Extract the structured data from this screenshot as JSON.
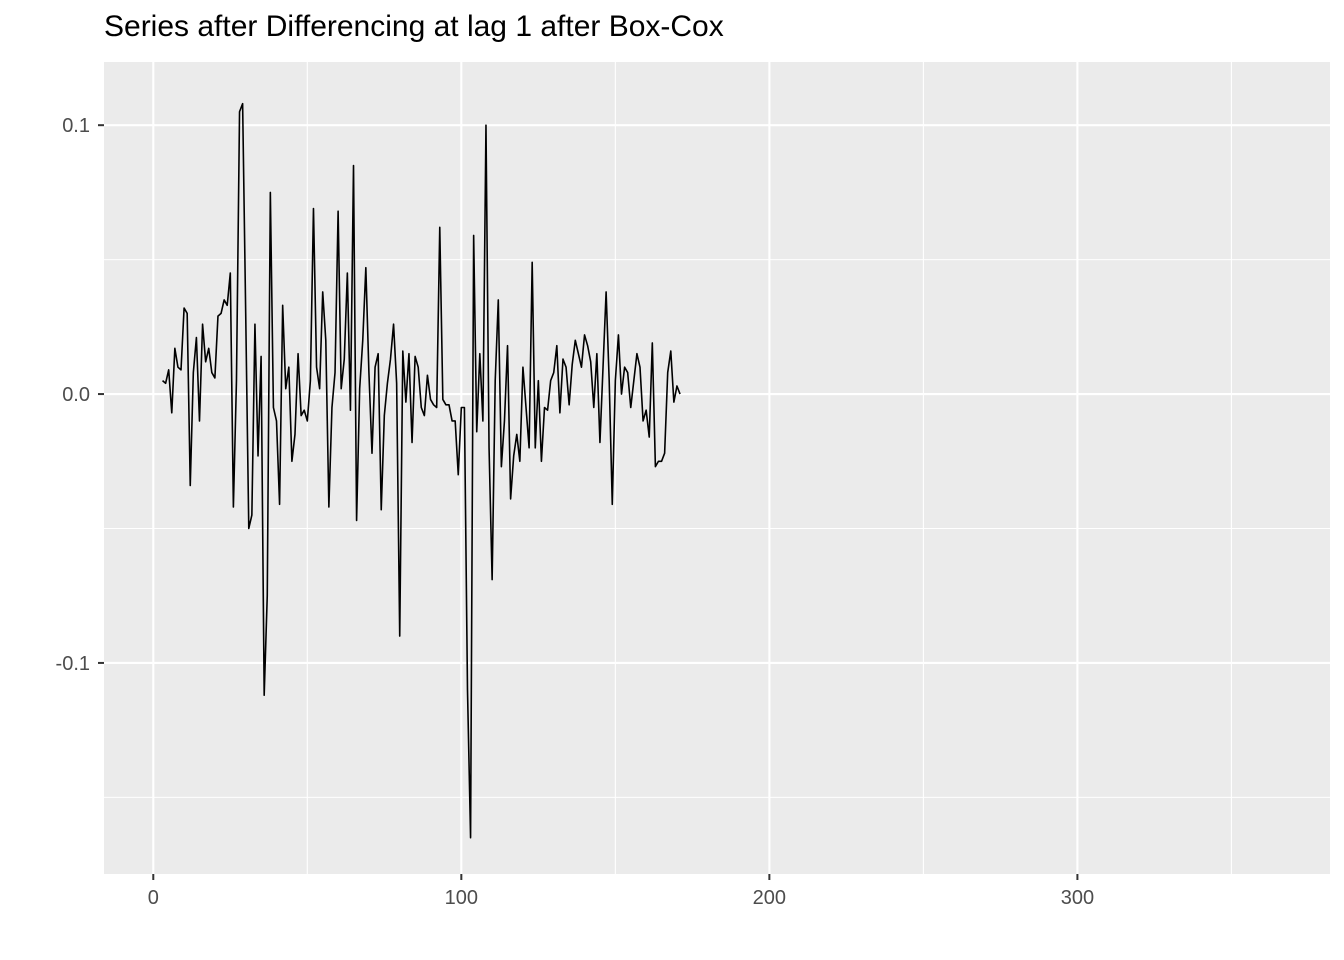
{
  "chart_data": {
    "type": "line",
    "title": "Series after Differencing at lag 1 after Box-Cox",
    "xlabel": "",
    "ylabel": "",
    "xlim": [
      -16,
      382
    ],
    "ylim": [
      -0.1785,
      0.1235
    ],
    "x_ticks": [
      0,
      100,
      200,
      300
    ],
    "x_tick_labels": [
      "0",
      "100",
      "200",
      "300"
    ],
    "y_ticks": [
      0.1,
      0.0,
      -0.1
    ],
    "y_tick_labels": [
      "0.1",
      "0.0",
      "-0.1"
    ],
    "grid": true,
    "panel_background": "#ebebeb",
    "grid_color": "#ffffff",
    "line_color": "#000000",
    "series": [
      {
        "x_start": 3,
        "values": [
          0.005,
          0.004,
          0.009,
          -0.007,
          0.017,
          0.01,
          0.009,
          0.032,
          0.03,
          -0.034,
          0.008,
          0.021,
          -0.01,
          0.026,
          0.012,
          0.017,
          0.008,
          0.006,
          0.029,
          0.03,
          0.035,
          0.033,
          0.045,
          -0.042,
          0.005,
          0.105,
          0.108,
          0.03,
          -0.05,
          -0.045,
          0.026,
          -0.023,
          0.014,
          -0.112,
          -0.075,
          0.075,
          -0.005,
          -0.01,
          -0.041,
          0.033,
          0.002,
          0.01,
          -0.025,
          -0.015,
          0.015,
          -0.008,
          -0.006,
          -0.01,
          0.005,
          0.069,
          0.01,
          0.002,
          0.038,
          0.02,
          -0.042,
          -0.005,
          0.008,
          0.068,
          0.002,
          0.013,
          0.045,
          -0.006,
          0.085,
          -0.047,
          0.002,
          0.02,
          0.047,
          0.008,
          -0.022,
          0.01,
          0.015,
          -0.043,
          -0.008,
          0.004,
          0.013,
          0.026,
          0.004,
          -0.09,
          0.016,
          -0.003,
          0.015,
          -0.018,
          0.014,
          0.01,
          -0.005,
          -0.008,
          0.007,
          -0.002,
          -0.004,
          -0.005,
          0.062,
          -0.002,
          -0.004,
          -0.004,
          -0.01,
          -0.01,
          -0.03,
          -0.005,
          -0.005,
          -0.11,
          -0.165,
          0.059,
          -0.014,
          0.015,
          -0.01,
          0.1,
          -0.02,
          -0.069,
          0.005,
          0.035,
          -0.027,
          -0.01,
          0.018,
          -0.039,
          -0.023,
          -0.015,
          -0.025,
          0.01,
          -0.005,
          -0.02,
          0.049,
          -0.02,
          0.005,
          -0.025,
          -0.005,
          -0.006,
          0.005,
          0.008,
          0.018,
          -0.007,
          0.013,
          0.01,
          -0.004,
          0.011,
          0.02,
          0.015,
          0.01,
          0.022,
          0.018,
          0.012,
          -0.005,
          0.015,
          -0.018,
          0.01,
          0.038,
          0.005,
          -0.041,
          0.005,
          0.022,
          0.0,
          0.01,
          0.008,
          -0.005,
          0.005,
          0.015,
          0.01,
          -0.01,
          -0.006,
          -0.016,
          0.019,
          -0.027,
          -0.025,
          -0.025,
          -0.022,
          0.008,
          0.016,
          -0.003,
          0.003,
          0.0
        ],
        "note": ""
      }
    ]
  }
}
